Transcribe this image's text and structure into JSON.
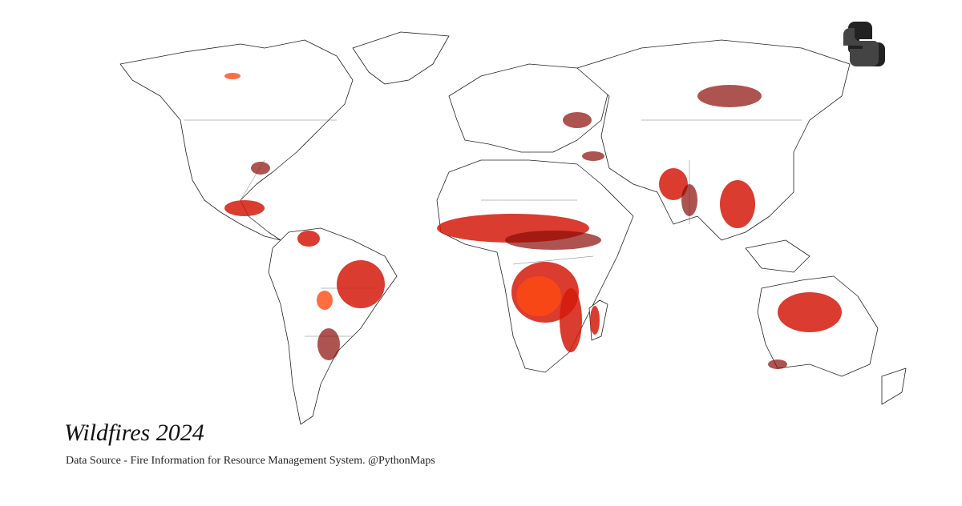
{
  "map": {
    "title": "Wildfires 2024",
    "source": "Data Source - Fire Information for Resource Management System. @PythonMaps"
  }
}
